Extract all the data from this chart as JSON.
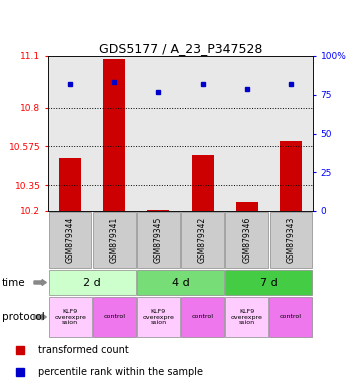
{
  "title": "GDS5177 / A_23_P347528",
  "samples": [
    "GSM879344",
    "GSM879341",
    "GSM879345",
    "GSM879342",
    "GSM879346",
    "GSM879343"
  ],
  "red_values": [
    10.505,
    11.08,
    10.205,
    10.525,
    10.255,
    10.605
  ],
  "blue_values": [
    82,
    83,
    77,
    82,
    79,
    82
  ],
  "y_min": 10.2,
  "y_max": 11.1,
  "y_ticks_left": [
    10.2,
    10.35,
    10.575,
    10.8,
    11.1
  ],
  "y_ticks_left_labels": [
    "10.2",
    "10.35",
    "10.575",
    "10.8",
    "11.1"
  ],
  "y_ticks_right": [
    0,
    25,
    50,
    75,
    100
  ],
  "y_ticks_right_labels": [
    "0",
    "25",
    "50",
    "75",
    "100%"
  ],
  "time_groups": [
    {
      "label": "2 d",
      "start": 0,
      "end": 2,
      "color": "#ccffcc"
    },
    {
      "label": "4 d",
      "start": 2,
      "end": 4,
      "color": "#77dd77"
    },
    {
      "label": "7 d",
      "start": 4,
      "end": 6,
      "color": "#44cc44"
    }
  ],
  "protocol_groups": [
    {
      "label": "KLF9\noverexpre\nssion",
      "color": "#ffccff"
    },
    {
      "label": "control",
      "color": "#ee77ee"
    },
    {
      "label": "KLF9\noverexpre\nssion",
      "color": "#ffccff"
    },
    {
      "label": "control",
      "color": "#ee77ee"
    },
    {
      "label": "KLF9\noverexpre\nssion",
      "color": "#ffccff"
    },
    {
      "label": "control",
      "color": "#ee77ee"
    }
  ],
  "legend_red": "transformed count",
  "legend_blue": "percentile rank within the sample",
  "bar_width": 0.5,
  "bar_color": "#cc0000",
  "dot_color": "#0000cc",
  "bg_color": "#ffffff",
  "plot_bg": "#e8e8e8",
  "sample_box_color": "#cccccc",
  "time_label": "time",
  "protocol_label": "protocol"
}
